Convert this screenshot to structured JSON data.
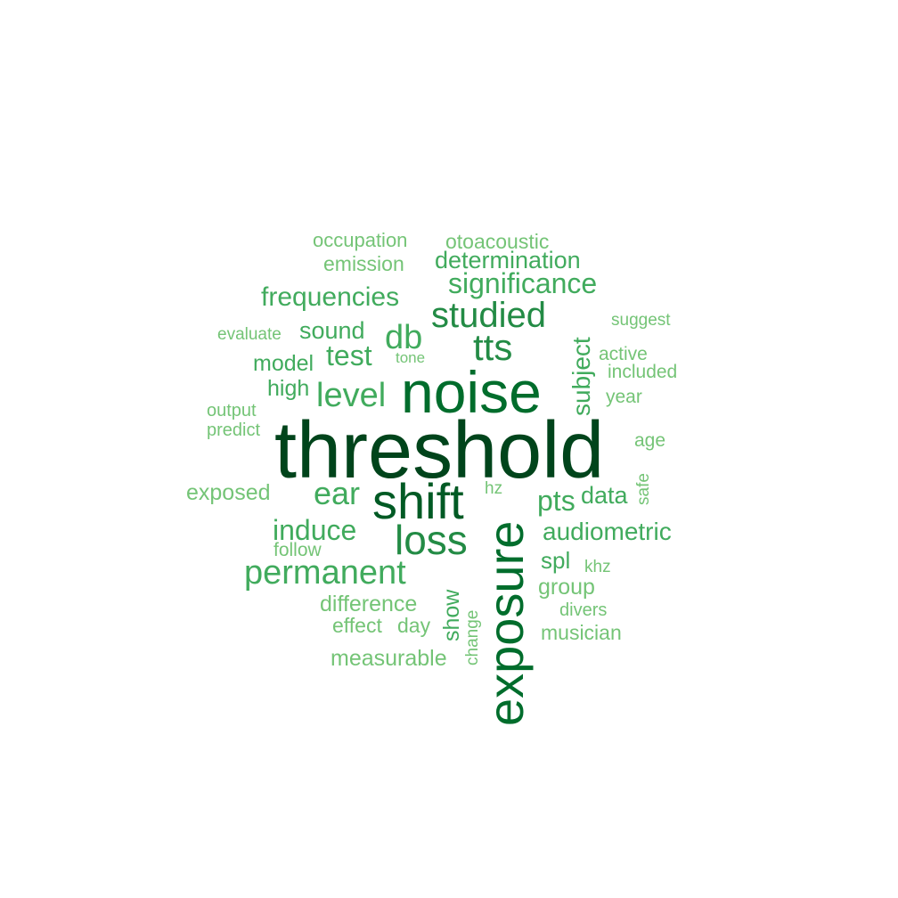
{
  "palette": {
    "darkest": "#00441b",
    "dark": "#006d2c",
    "mid": "#238b45",
    "medium": "#41ab5d",
    "light": "#74c476",
    "lightest": "#8fcca0"
  },
  "words": [
    {
      "id": "threshold",
      "text": "threshold",
      "weight": 10,
      "vertical": false,
      "color": "#00441b"
    },
    {
      "id": "noise",
      "text": "noise",
      "weight": 7,
      "vertical": false,
      "color": "#006d2c"
    },
    {
      "id": "shift",
      "text": "shift",
      "weight": 6,
      "vertical": false,
      "color": "#005a24"
    },
    {
      "id": "exposure",
      "text": "exposure",
      "weight": 6,
      "vertical": true,
      "color": "#006d2c"
    },
    {
      "id": "loss",
      "text": "loss",
      "weight": 5,
      "vertical": false,
      "color": "#238b45"
    },
    {
      "id": "studied",
      "text": "studied",
      "weight": 4,
      "vertical": false,
      "color": "#238b45"
    },
    {
      "id": "tts",
      "text": "tts",
      "weight": 4,
      "vertical": false,
      "color": "#238b45"
    },
    {
      "id": "permanent",
      "text": "permanent",
      "weight": 4,
      "vertical": false,
      "color": "#41ab5d"
    },
    {
      "id": "db",
      "text": "db",
      "weight": 4,
      "vertical": false,
      "color": "#41ab5d"
    },
    {
      "id": "level",
      "text": "level",
      "weight": 4,
      "vertical": false,
      "color": "#41ab5d"
    },
    {
      "id": "ear",
      "text": "ear",
      "weight": 4,
      "vertical": false,
      "color": "#41ab5d"
    },
    {
      "id": "significance",
      "text": "significance",
      "weight": 3,
      "vertical": false,
      "color": "#41ab5d"
    },
    {
      "id": "determination",
      "text": "determination",
      "weight": 3,
      "vertical": false,
      "color": "#41ab5d"
    },
    {
      "id": "frequencies",
      "text": "frequencies",
      "weight": 3,
      "vertical": false,
      "color": "#41ab5d"
    },
    {
      "id": "subject",
      "text": "subject",
      "weight": 3,
      "vertical": true,
      "color": "#41ab5d"
    },
    {
      "id": "test",
      "text": "test",
      "weight": 3,
      "vertical": false,
      "color": "#41ab5d"
    },
    {
      "id": "induce",
      "text": "induce",
      "weight": 3,
      "vertical": false,
      "color": "#41ab5d"
    },
    {
      "id": "audiometric",
      "text": "audiometric",
      "weight": 3,
      "vertical": false,
      "color": "#41ab5d"
    },
    {
      "id": "pts",
      "text": "pts",
      "weight": 3,
      "vertical": false,
      "color": "#41ab5d"
    },
    {
      "id": "sound",
      "text": "sound",
      "weight": 2,
      "vertical": false,
      "color": "#41ab5d"
    },
    {
      "id": "model",
      "text": "model",
      "weight": 2,
      "vertical": false,
      "color": "#41ab5d"
    },
    {
      "id": "high",
      "text": "high",
      "weight": 2,
      "vertical": false,
      "color": "#41ab5d"
    },
    {
      "id": "data",
      "text": "data",
      "weight": 2,
      "vertical": false,
      "color": "#41ab5d"
    },
    {
      "id": "spl",
      "text": "spl",
      "weight": 2,
      "vertical": false,
      "color": "#41ab5d"
    },
    {
      "id": "show",
      "text": "show",
      "weight": 2,
      "vertical": true,
      "color": "#41ab5d"
    },
    {
      "id": "group",
      "text": "group",
      "weight": 2,
      "vertical": false,
      "color": "#74c476"
    },
    {
      "id": "difference",
      "text": "difference",
      "weight": 2,
      "vertical": false,
      "color": "#74c476"
    },
    {
      "id": "effect",
      "text": "effect",
      "weight": 2,
      "vertical": false,
      "color": "#74c476"
    },
    {
      "id": "day",
      "text": "day",
      "weight": 2,
      "vertical": false,
      "color": "#74c476"
    },
    {
      "id": "measurable",
      "text": "measurable",
      "weight": 2,
      "vertical": false,
      "color": "#74c476"
    },
    {
      "id": "musician",
      "text": "musician",
      "weight": 2,
      "vertical": false,
      "color": "#74c476"
    },
    {
      "id": "exposed",
      "text": "exposed",
      "weight": 2,
      "vertical": false,
      "color": "#74c476"
    },
    {
      "id": "emission",
      "text": "emission",
      "weight": 2,
      "vertical": false,
      "color": "#74c476"
    },
    {
      "id": "occupation",
      "text": "occupation",
      "weight": 2,
      "vertical": false,
      "color": "#74c476"
    },
    {
      "id": "otoacoustic",
      "text": "otoacoustic",
      "weight": 2,
      "vertical": false,
      "color": "#74c476"
    },
    {
      "id": "follow",
      "text": "follow",
      "weight": 1,
      "vertical": false,
      "color": "#74c476"
    },
    {
      "id": "output",
      "text": "output",
      "weight": 1,
      "vertical": false,
      "color": "#74c476"
    },
    {
      "id": "predict",
      "text": "predict",
      "weight": 1,
      "vertical": false,
      "color": "#74c476"
    },
    {
      "id": "evaluate",
      "text": "evaluate",
      "weight": 1,
      "vertical": false,
      "color": "#74c476"
    },
    {
      "id": "tone",
      "text": "tone",
      "weight": 1,
      "vertical": false,
      "color": "#74c476"
    },
    {
      "id": "hz",
      "text": "hz",
      "weight": 1,
      "vertical": false,
      "color": "#74c476"
    },
    {
      "id": "change",
      "text": "change",
      "weight": 1,
      "vertical": true,
      "color": "#74c476"
    },
    {
      "id": "active",
      "text": "active",
      "weight": 1,
      "vertical": false,
      "color": "#74c476"
    },
    {
      "id": "included",
      "text": "included",
      "weight": 1,
      "vertical": false,
      "color": "#74c476"
    },
    {
      "id": "year",
      "text": "year",
      "weight": 1,
      "vertical": false,
      "color": "#74c476"
    },
    {
      "id": "age",
      "text": "age",
      "weight": 1,
      "vertical": false,
      "color": "#74c476"
    },
    {
      "id": "safe",
      "text": "safe",
      "weight": 1,
      "vertical": true,
      "color": "#74c476"
    },
    {
      "id": "khz",
      "text": "khz",
      "weight": 1,
      "vertical": false,
      "color": "#74c476"
    },
    {
      "id": "divers",
      "text": "divers",
      "weight": 1,
      "vertical": false,
      "color": "#74c476"
    },
    {
      "id": "suggest",
      "text": "suggest",
      "weight": 1,
      "vertical": false,
      "color": "#74c476"
    }
  ]
}
